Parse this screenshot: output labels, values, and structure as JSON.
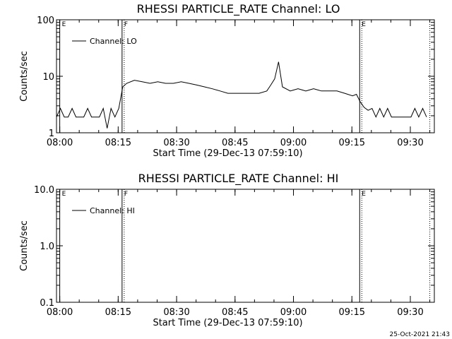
{
  "footer_timestamp": "25-Oct-2021 21:43",
  "chart_data": [
    {
      "type": "line",
      "title": "RHESSI PARTICLE_RATE Channel: LO",
      "xlabel": "Start Time (29-Dec-13 07:59:10)",
      "ylabel": "Counts/sec",
      "yscale": "log",
      "ylim": [
        1,
        100
      ],
      "ytick_labels": [
        "1",
        "10",
        "100"
      ],
      "ytick_values": [
        1,
        10,
        100
      ],
      "xlim_minutes": [
        0,
        97
      ],
      "xtick_labels": [
        "08:00",
        "08:15",
        "08:30",
        "08:45",
        "09:00",
        "09:15",
        "09:30"
      ],
      "xtick_values": [
        "08:00",
        "08:15",
        "08:30",
        "08:45",
        "09:00",
        "09:15",
        "09:30"
      ],
      "legend": {
        "label": "Channel: LO",
        "placement": "top-left"
      },
      "markers": [
        {
          "label": "E",
          "time": "08:00",
          "style": "solid"
        },
        {
          "label": "F",
          "time": "08:16",
          "style": "solid+dotted"
        },
        {
          "label": "E",
          "time": "09:17",
          "style": "solid+dotted"
        },
        {
          "label": "",
          "time": "09:35",
          "style": "dotted"
        }
      ],
      "series": [
        {
          "name": "Channel: LO",
          "x": [
            "08:00",
            "08:01",
            "08:02",
            "08:03",
            "08:04",
            "08:05",
            "08:06",
            "08:07",
            "08:08",
            "08:09",
            "08:10",
            "08:11",
            "08:12",
            "08:13",
            "08:14",
            "08:15",
            "08:16",
            "08:17",
            "08:18",
            "08:20",
            "08:22",
            "08:24",
            "08:26",
            "08:28",
            "08:30",
            "08:32",
            "08:34",
            "08:36",
            "08:38",
            "08:40",
            "08:42",
            "08:44",
            "08:46",
            "08:48",
            "08:50",
            "08:52",
            "08:54",
            "08:55",
            "08:56",
            "08:57",
            "08:58",
            "09:00",
            "09:02",
            "09:04",
            "09:06",
            "09:08",
            "09:10",
            "09:12",
            "09:14",
            "09:16",
            "09:17",
            "09:18",
            "09:19",
            "09:20",
            "09:21",
            "09:22",
            "09:23",
            "09:24",
            "09:25",
            "09:26",
            "09:27",
            "09:28",
            "09:29",
            "09:30",
            "09:31",
            "09:32",
            "09:33",
            "09:34",
            "09:35"
          ],
          "y": [
            1.9,
            2.7,
            1.9,
            1.9,
            2.7,
            1.9,
            1.9,
            1.9,
            2.7,
            1.9,
            1.9,
            1.9,
            2.7,
            1.2,
            2.7,
            1.9,
            2.7,
            6.5,
            7.5,
            8.5,
            8.0,
            7.5,
            8.0,
            7.5,
            7.5,
            8.0,
            7.5,
            7.0,
            6.5,
            6.0,
            5.5,
            5.0,
            5.0,
            5.0,
            5.0,
            5.0,
            5.5,
            7.0,
            9.0,
            18.0,
            6.5,
            5.5,
            6.0,
            5.5,
            6.0,
            5.5,
            5.5,
            5.5,
            5.0,
            4.5,
            4.8,
            3.5,
            2.8,
            2.5,
            2.7,
            1.9,
            2.7,
            1.9,
            2.7,
            1.9,
            1.9,
            1.9,
            1.9,
            1.9,
            1.9,
            2.7,
            1.9,
            2.7,
            1.9
          ]
        }
      ]
    },
    {
      "type": "line",
      "title": "RHESSI PARTICLE_RATE Channel: HI",
      "xlabel": "Start Time (29-Dec-13 07:59:10)",
      "ylabel": "Counts/sec",
      "yscale": "log",
      "ylim": [
        0.1,
        10
      ],
      "ytick_labels": [
        "0.1",
        "1.0",
        "10.0"
      ],
      "ytick_values": [
        0.1,
        1,
        10
      ],
      "xlim_minutes": [
        0,
        97
      ],
      "xtick_labels": [
        "08:00",
        "08:15",
        "08:30",
        "08:45",
        "09:00",
        "09:15",
        "09:30"
      ],
      "xtick_values": [
        "08:00",
        "08:15",
        "08:30",
        "08:45",
        "09:00",
        "09:15",
        "09:30"
      ],
      "legend": {
        "label": "Channel: HI",
        "placement": "top-left"
      },
      "markers": [
        {
          "label": "E",
          "time": "08:00",
          "style": "solid"
        },
        {
          "label": "F",
          "time": "08:16",
          "style": "solid+dotted"
        },
        {
          "label": "E",
          "time": "09:17",
          "style": "solid+dotted"
        },
        {
          "label": "",
          "time": "09:35",
          "style": "dotted"
        }
      ],
      "series": [
        {
          "name": "Channel: HI",
          "x": [],
          "y": []
        }
      ]
    }
  ]
}
